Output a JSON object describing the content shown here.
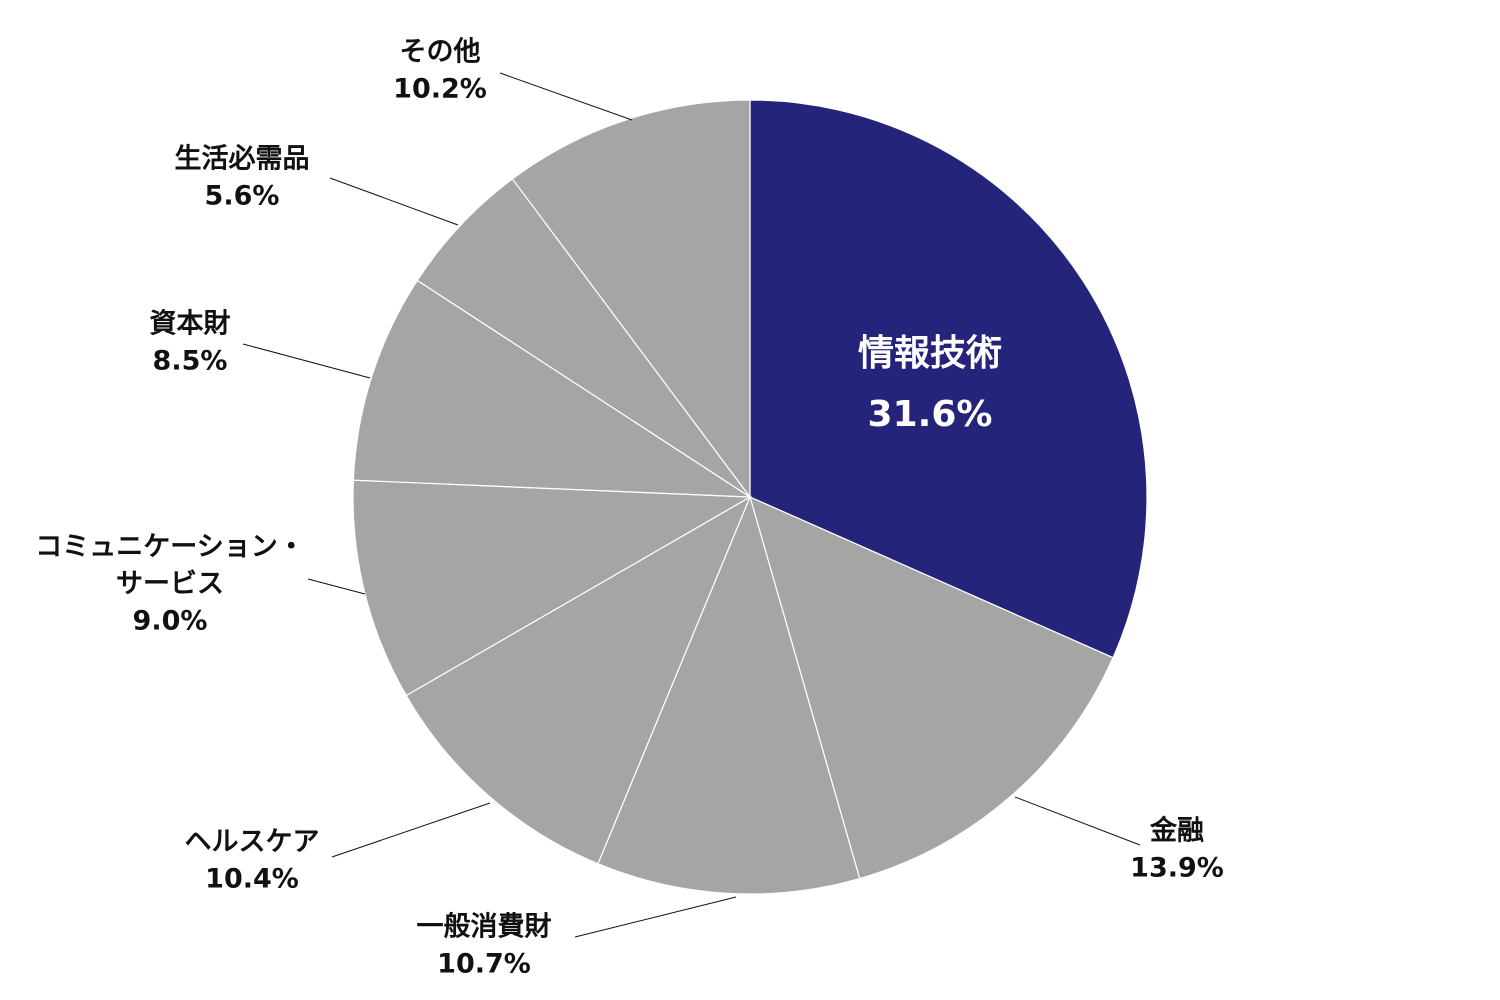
{
  "chart_data": {
    "type": "pie",
    "start": "12 o'clock",
    "direction": "clockwise",
    "slices": [
      {
        "label": "情報技術",
        "label_lines": [
          "情報技術"
        ],
        "value": 31.6,
        "value_label": "31.6%",
        "color": "#25247b",
        "label_color": "#ffffff",
        "label_position": "inside"
      },
      {
        "label": "金融",
        "label_lines": [
          "金融"
        ],
        "value": 13.9,
        "value_label": "13.9%",
        "color": "#a5a5a5",
        "label_color": "#111111",
        "label_position": "outside"
      },
      {
        "label": "一般消費財",
        "label_lines": [
          "一般消費財"
        ],
        "value": 10.7,
        "value_label": "10.7%",
        "color": "#a5a5a5",
        "label_color": "#111111",
        "label_position": "outside"
      },
      {
        "label": "ヘルスケア",
        "label_lines": [
          "ヘルスケア"
        ],
        "value": 10.4,
        "value_label": "10.4%",
        "color": "#a5a5a5",
        "label_color": "#111111",
        "label_position": "outside"
      },
      {
        "label": "コミュニケーション・サービス",
        "label_lines": [
          "コミュニケーション・",
          "サービス"
        ],
        "value": 9.0,
        "value_label": "9.0%",
        "color": "#a5a5a5",
        "label_color": "#111111",
        "label_position": "outside"
      },
      {
        "label": "資本財",
        "label_lines": [
          "資本財"
        ],
        "value": 8.5,
        "value_label": "8.5%",
        "color": "#a5a5a5",
        "label_color": "#111111",
        "label_position": "outside"
      },
      {
        "label": "生活必需品",
        "label_lines": [
          "生活必需品"
        ],
        "value": 5.6,
        "value_label": "5.6%",
        "color": "#a5a5a5",
        "label_color": "#111111",
        "label_position": "outside"
      },
      {
        "label": "その他",
        "label_lines": [
          "その他"
        ],
        "value": 10.2,
        "value_label": "10.2%",
        "color": "#a5a5a5",
        "label_color": "#111111",
        "label_position": "outside"
      }
    ]
  }
}
